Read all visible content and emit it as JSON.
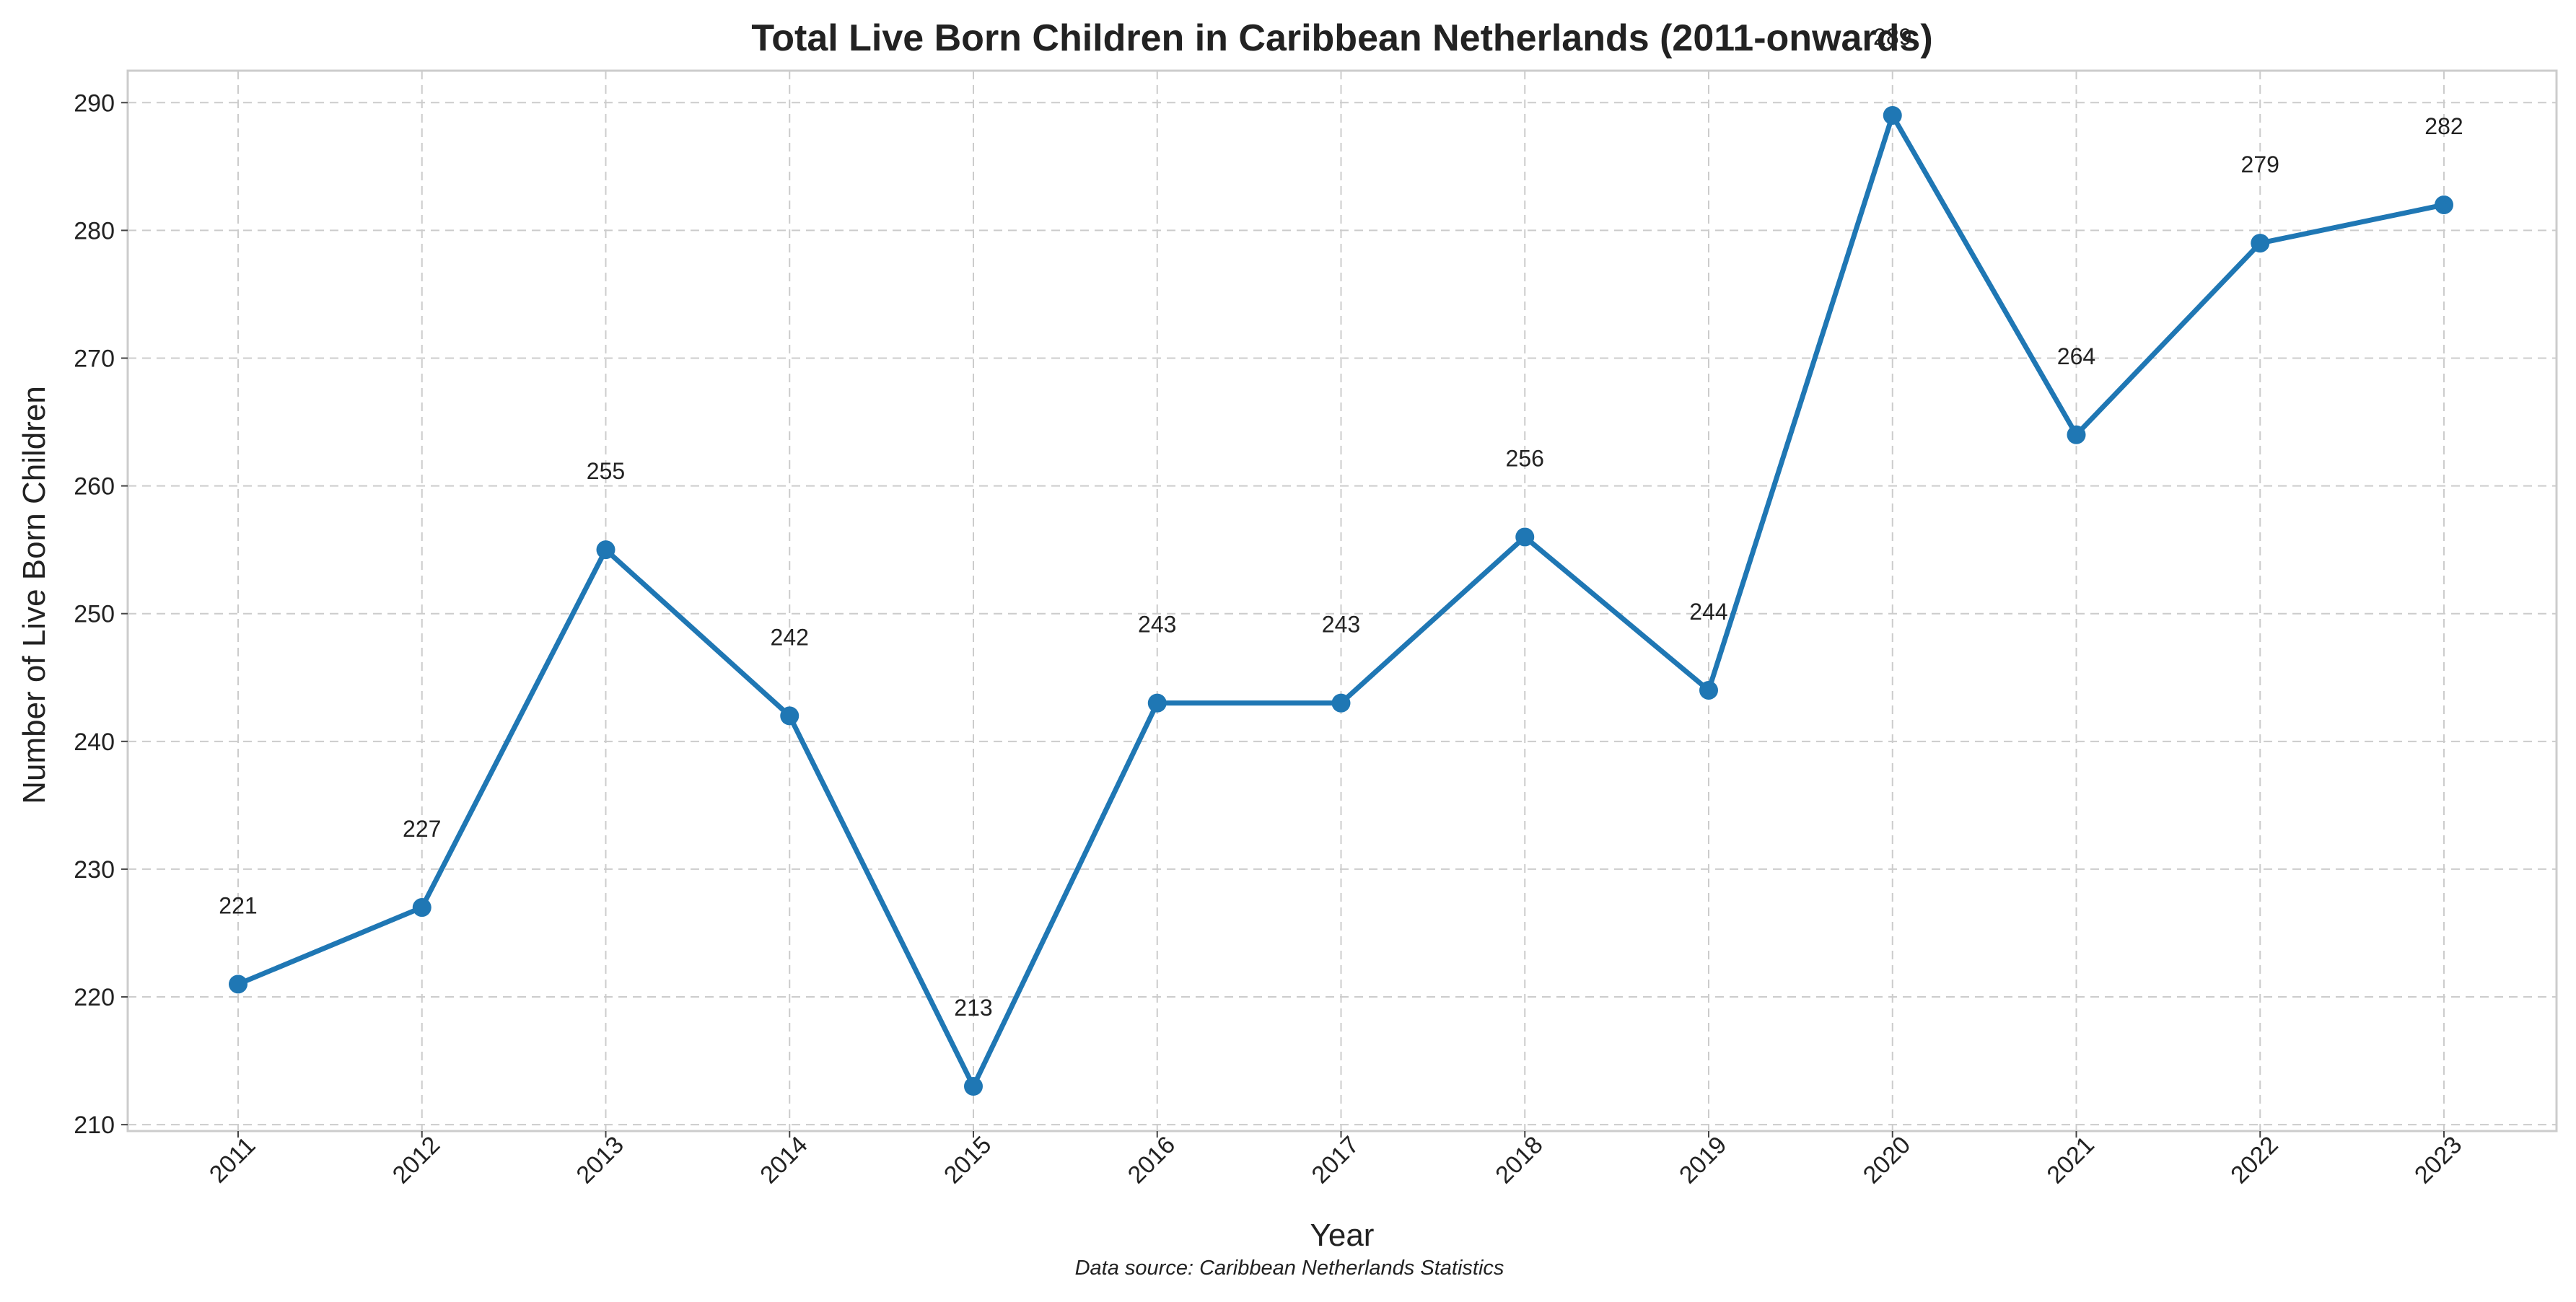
{
  "chart_data": {
    "type": "line",
    "title": "Total Live Born Children in Caribbean Netherlands (2011-onwards)",
    "xlabel": "Year",
    "ylabel": "Number of Live Born Children",
    "source_note": "Data source: Caribbean Netherlands Statistics",
    "categories": [
      "2011",
      "2012",
      "2013",
      "2014",
      "2015",
      "2016",
      "2017",
      "2018",
      "2019",
      "2020",
      "2021",
      "2022",
      "2023"
    ],
    "series": [
      {
        "values": [
          221,
          227,
          255,
          242,
          213,
          243,
          243,
          256,
          244,
          289,
          264,
          279,
          282
        ]
      }
    ],
    "ylim": [
      209.5,
      292.5
    ],
    "yticks": [
      210,
      220,
      230,
      240,
      250,
      260,
      270,
      280,
      290
    ],
    "grid": true,
    "legend": "none",
    "colors": {
      "line": "#1f77b4",
      "grid": "#cccccc",
      "frame": "#cccccc",
      "text": "#222222"
    }
  }
}
